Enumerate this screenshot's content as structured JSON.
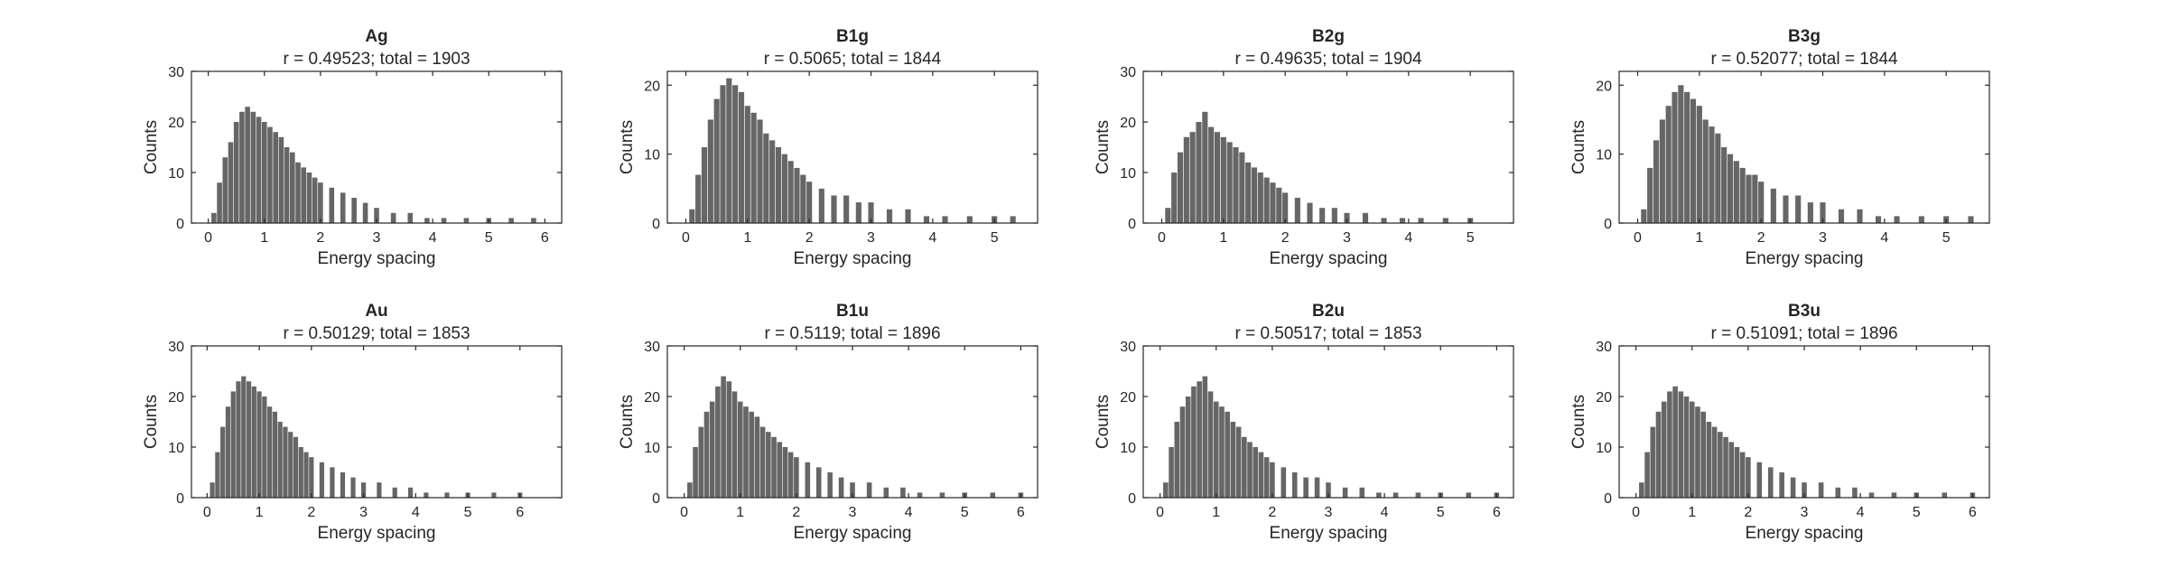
{
  "chart_data": [
    {
      "type": "bar",
      "title": "Ag",
      "subtitle": "r = 0.49523; total = 1903",
      "xlabel": "Energy spacing",
      "ylabel": "Counts",
      "xlim": [
        -0.3,
        6.3
      ],
      "ylim": [
        0,
        30
      ],
      "xticks": [
        0,
        1,
        2,
        3,
        4,
        5,
        6
      ],
      "yticks": [
        0,
        10,
        20,
        30
      ],
      "bar_color": "#666666",
      "grid": false,
      "x": [
        0.1,
        0.2,
        0.3,
        0.4,
        0.5,
        0.6,
        0.7,
        0.8,
        0.9,
        1.0,
        1.1,
        1.2,
        1.3,
        1.4,
        1.5,
        1.6,
        1.7,
        1.8,
        1.9,
        2.0,
        2.2,
        2.4,
        2.6,
        2.8,
        3.0,
        3.3,
        3.6,
        3.9,
        4.2,
        4.6,
        5.0,
        5.4,
        5.8
      ],
      "values": [
        2,
        8,
        13,
        16,
        20,
        22,
        23,
        22,
        21,
        20,
        19,
        18,
        17,
        15,
        14,
        12,
        11,
        10,
        9,
        8,
        7,
        6,
        5,
        4,
        3,
        2,
        2,
        1,
        1,
        1,
        1,
        1,
        1
      ]
    },
    {
      "type": "bar",
      "title": "B1g",
      "subtitle": "r = 0.5065; total = 1844",
      "xlabel": "Energy spacing",
      "ylabel": "Counts",
      "xlim": [
        -0.3,
        5.7
      ],
      "ylim": [
        0,
        22
      ],
      "xticks": [
        0,
        1,
        2,
        3,
        4,
        5
      ],
      "yticks": [
        0,
        10,
        20
      ],
      "bar_color": "#666666",
      "grid": false,
      "x": [
        0.1,
        0.2,
        0.3,
        0.4,
        0.5,
        0.6,
        0.7,
        0.8,
        0.9,
        1.0,
        1.1,
        1.2,
        1.3,
        1.4,
        1.5,
        1.6,
        1.7,
        1.8,
        1.9,
        2.0,
        2.2,
        2.4,
        2.6,
        2.8,
        3.0,
        3.3,
        3.6,
        3.9,
        4.2,
        4.6,
        5.0,
        5.3
      ],
      "values": [
        2,
        7,
        11,
        15,
        18,
        20,
        21,
        20,
        19,
        17,
        16,
        15,
        13,
        12,
        11,
        10,
        9,
        8,
        7,
        6,
        5,
        4,
        4,
        3,
        3,
        2,
        2,
        1,
        1,
        1,
        1,
        1
      ]
    },
    {
      "type": "bar",
      "title": "B2g",
      "subtitle": "r = 0.49635; total = 1904",
      "xlabel": "Energy spacing",
      "ylabel": "Counts",
      "xlim": [
        -0.3,
        5.7
      ],
      "ylim": [
        0,
        30
      ],
      "xticks": [
        0,
        1,
        2,
        3,
        4,
        5
      ],
      "yticks": [
        0,
        10,
        20,
        30
      ],
      "bar_color": "#666666",
      "grid": false,
      "x": [
        0.1,
        0.2,
        0.3,
        0.4,
        0.5,
        0.6,
        0.7,
        0.8,
        0.9,
        1.0,
        1.1,
        1.2,
        1.3,
        1.4,
        1.5,
        1.6,
        1.7,
        1.8,
        1.9,
        2.0,
        2.2,
        2.4,
        2.6,
        2.8,
        3.0,
        3.3,
        3.6,
        3.9,
        4.2,
        4.6,
        5.0
      ],
      "values": [
        3,
        10,
        14,
        17,
        18,
        20,
        22,
        19,
        18,
        17,
        16,
        15,
        14,
        12,
        11,
        10,
        9,
        8,
        7,
        6,
        5,
        4,
        3,
        3,
        2,
        2,
        1,
        1,
        1,
        1,
        1
      ]
    },
    {
      "type": "bar",
      "title": "B3g",
      "subtitle": "r = 0.52077; total = 1844",
      "xlabel": "Energy spacing",
      "ylabel": "Counts",
      "xlim": [
        -0.3,
        5.7
      ],
      "ylim": [
        0,
        22
      ],
      "xticks": [
        0,
        1,
        2,
        3,
        4,
        5
      ],
      "yticks": [
        0,
        10,
        20
      ],
      "bar_color": "#666666",
      "grid": false,
      "x": [
        0.1,
        0.2,
        0.3,
        0.4,
        0.5,
        0.6,
        0.7,
        0.8,
        0.9,
        1.0,
        1.1,
        1.2,
        1.3,
        1.4,
        1.5,
        1.6,
        1.7,
        1.8,
        1.9,
        2.0,
        2.2,
        2.4,
        2.6,
        2.8,
        3.0,
        3.3,
        3.6,
        3.9,
        4.2,
        4.6,
        5.0,
        5.4
      ],
      "values": [
        2,
        8,
        12,
        15,
        17,
        19,
        20,
        19,
        18,
        17,
        15,
        14,
        13,
        11,
        10,
        9,
        8,
        7,
        7,
        6,
        5,
        4,
        4,
        3,
        3,
        2,
        2,
        1,
        1,
        1,
        1,
        1
      ]
    },
    {
      "type": "bar",
      "title": "Au",
      "subtitle": "r = 0.50129; total = 1853",
      "xlabel": "Energy spacing",
      "ylabel": "Counts",
      "xlim": [
        -0.3,
        6.8
      ],
      "ylim": [
        0,
        30
      ],
      "xticks": [
        0,
        1,
        2,
        3,
        4,
        5,
        6
      ],
      "yticks": [
        0,
        10,
        20,
        30
      ],
      "bar_color": "#666666",
      "grid": false,
      "x": [
        0.1,
        0.2,
        0.3,
        0.4,
        0.5,
        0.6,
        0.7,
        0.8,
        0.9,
        1.0,
        1.1,
        1.2,
        1.3,
        1.4,
        1.5,
        1.6,
        1.7,
        1.8,
        1.9,
        2.0,
        2.2,
        2.4,
        2.6,
        2.8,
        3.0,
        3.3,
        3.6,
        3.9,
        4.2,
        4.6,
        5.0,
        5.5,
        6.0
      ],
      "values": [
        3,
        9,
        14,
        18,
        21,
        23,
        24,
        23,
        22,
        21,
        20,
        18,
        17,
        15,
        14,
        13,
        12,
        10,
        9,
        8,
        7,
        6,
        5,
        4,
        3,
        3,
        2,
        2,
        1,
        1,
        1,
        1,
        1
      ]
    },
    {
      "type": "bar",
      "title": "B1u",
      "subtitle": "r = 0.5119; total = 1896",
      "xlabel": "Energy spacing",
      "ylabel": "Counts",
      "xlim": [
        -0.3,
        6.3
      ],
      "ylim": [
        0,
        30
      ],
      "xticks": [
        0,
        1,
        2,
        3,
        4,
        5,
        6
      ],
      "yticks": [
        0,
        10,
        20,
        30
      ],
      "bar_color": "#666666",
      "grid": false,
      "x": [
        0.1,
        0.2,
        0.3,
        0.4,
        0.5,
        0.6,
        0.7,
        0.8,
        0.9,
        1.0,
        1.1,
        1.2,
        1.3,
        1.4,
        1.5,
        1.6,
        1.7,
        1.8,
        1.9,
        2.0,
        2.2,
        2.4,
        2.6,
        2.8,
        3.0,
        3.3,
        3.6,
        3.9,
        4.2,
        4.6,
        5.0,
        5.5,
        6.0
      ],
      "values": [
        3,
        10,
        14,
        17,
        19,
        22,
        24,
        23,
        21,
        19,
        18,
        17,
        16,
        14,
        13,
        12,
        11,
        10,
        9,
        8,
        7,
        6,
        5,
        4,
        3,
        3,
        2,
        2,
        1,
        1,
        1,
        1,
        1
      ]
    },
    {
      "type": "bar",
      "title": "B2u",
      "subtitle": "r = 0.50517; total = 1853",
      "xlabel": "Energy spacing",
      "ylabel": "Counts",
      "xlim": [
        -0.3,
        6.3
      ],
      "ylim": [
        0,
        30
      ],
      "xticks": [
        0,
        1,
        2,
        3,
        4,
        5,
        6
      ],
      "yticks": [
        0,
        10,
        20,
        30
      ],
      "bar_color": "#666666",
      "grid": false,
      "x": [
        0.1,
        0.2,
        0.3,
        0.4,
        0.5,
        0.6,
        0.7,
        0.8,
        0.9,
        1.0,
        1.1,
        1.2,
        1.3,
        1.4,
        1.5,
        1.6,
        1.7,
        1.8,
        1.9,
        2.0,
        2.2,
        2.4,
        2.6,
        2.8,
        3.0,
        3.3,
        3.6,
        3.9,
        4.2,
        4.6,
        5.0,
        5.5,
        6.0
      ],
      "values": [
        3,
        10,
        15,
        18,
        20,
        22,
        23,
        24,
        21,
        19,
        18,
        17,
        15,
        14,
        12,
        11,
        10,
        9,
        8,
        7,
        6,
        5,
        4,
        4,
        3,
        2,
        2,
        1,
        1,
        1,
        1,
        1,
        1
      ]
    },
    {
      "type": "bar",
      "title": "B3u",
      "subtitle": "r = 0.51091; total = 1896",
      "xlabel": "Energy spacing",
      "ylabel": "Counts",
      "xlim": [
        -0.3,
        6.3
      ],
      "ylim": [
        0,
        30
      ],
      "xticks": [
        0,
        1,
        2,
        3,
        4,
        5,
        6
      ],
      "yticks": [
        0,
        10,
        20,
        30
      ],
      "bar_color": "#666666",
      "grid": false,
      "x": [
        0.1,
        0.2,
        0.3,
        0.4,
        0.5,
        0.6,
        0.7,
        0.8,
        0.9,
        1.0,
        1.1,
        1.2,
        1.3,
        1.4,
        1.5,
        1.6,
        1.7,
        1.8,
        1.9,
        2.0,
        2.2,
        2.4,
        2.6,
        2.8,
        3.0,
        3.3,
        3.6,
        3.9,
        4.2,
        4.6,
        5.0,
        5.5,
        6.0
      ],
      "values": [
        3,
        9,
        14,
        17,
        19,
        21,
        22,
        21,
        20,
        19,
        18,
        17,
        15,
        14,
        13,
        12,
        11,
        10,
        9,
        8,
        7,
        6,
        5,
        4,
        3,
        3,
        2,
        2,
        1,
        1,
        1,
        1,
        1
      ]
    }
  ]
}
